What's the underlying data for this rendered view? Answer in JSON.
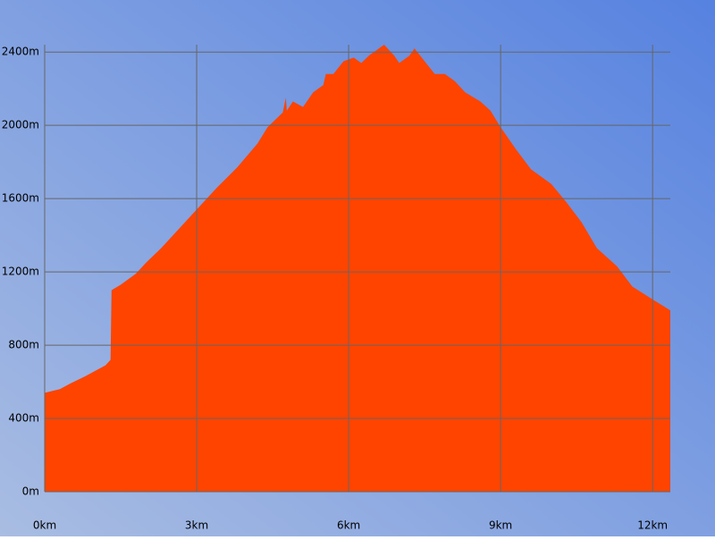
{
  "chart_data": {
    "type": "area",
    "x": [
      0,
      0.3,
      0.5,
      0.8,
      1.0,
      1.2,
      1.3,
      1.32,
      1.5,
      1.8,
      2.0,
      2.3,
      2.7,
      3.0,
      3.4,
      3.8,
      4.2,
      4.4,
      4.7,
      4.76,
      4.78,
      4.9,
      5.1,
      5.3,
      5.5,
      5.55,
      5.7,
      5.9,
      6.1,
      6.25,
      6.4,
      6.7,
      6.9,
      7.0,
      7.2,
      7.3,
      7.5,
      7.7,
      7.9,
      8.1,
      8.3,
      8.6,
      8.8,
      9.0,
      9.3,
      9.6,
      10.0,
      10.3,
      10.6,
      10.9,
      11.3,
      11.6,
      12.0,
      12.35
    ],
    "values": [
      540,
      560,
      590,
      630,
      660,
      690,
      720,
      1100,
      1130,
      1190,
      1250,
      1330,
      1450,
      1540,
      1660,
      1770,
      1900,
      1990,
      2070,
      2150,
      2080,
      2130,
      2100,
      2180,
      2220,
      2280,
      2280,
      2350,
      2370,
      2340,
      2380,
      2440,
      2380,
      2340,
      2380,
      2420,
      2350,
      2280,
      2280,
      2240,
      2180,
      2130,
      2080,
      1990,
      1870,
      1760,
      1680,
      1580,
      1470,
      1330,
      1230,
      1120,
      1050,
      990
    ],
    "color": "#ff4400",
    "xlim": [
      0,
      12.35
    ],
    "ylim": [
      0,
      2440
    ],
    "xticks": [
      {
        "value": 0,
        "label": "0km"
      },
      {
        "value": 3,
        "label": "3km"
      },
      {
        "value": 6,
        "label": "6km"
      },
      {
        "value": 9,
        "label": "9km"
      },
      {
        "value": 12,
        "label": "12km"
      }
    ],
    "yticks": [
      {
        "value": 0,
        "label": "0m"
      },
      {
        "value": 400,
        "label": "400m"
      },
      {
        "value": 800,
        "label": "800m"
      },
      {
        "value": 1200,
        "label": "1200m"
      },
      {
        "value": 1600,
        "label": "1600m"
      },
      {
        "value": 2000,
        "label": "2000m"
      },
      {
        "value": 2400,
        "label": "2400m"
      }
    ],
    "grid": true
  }
}
